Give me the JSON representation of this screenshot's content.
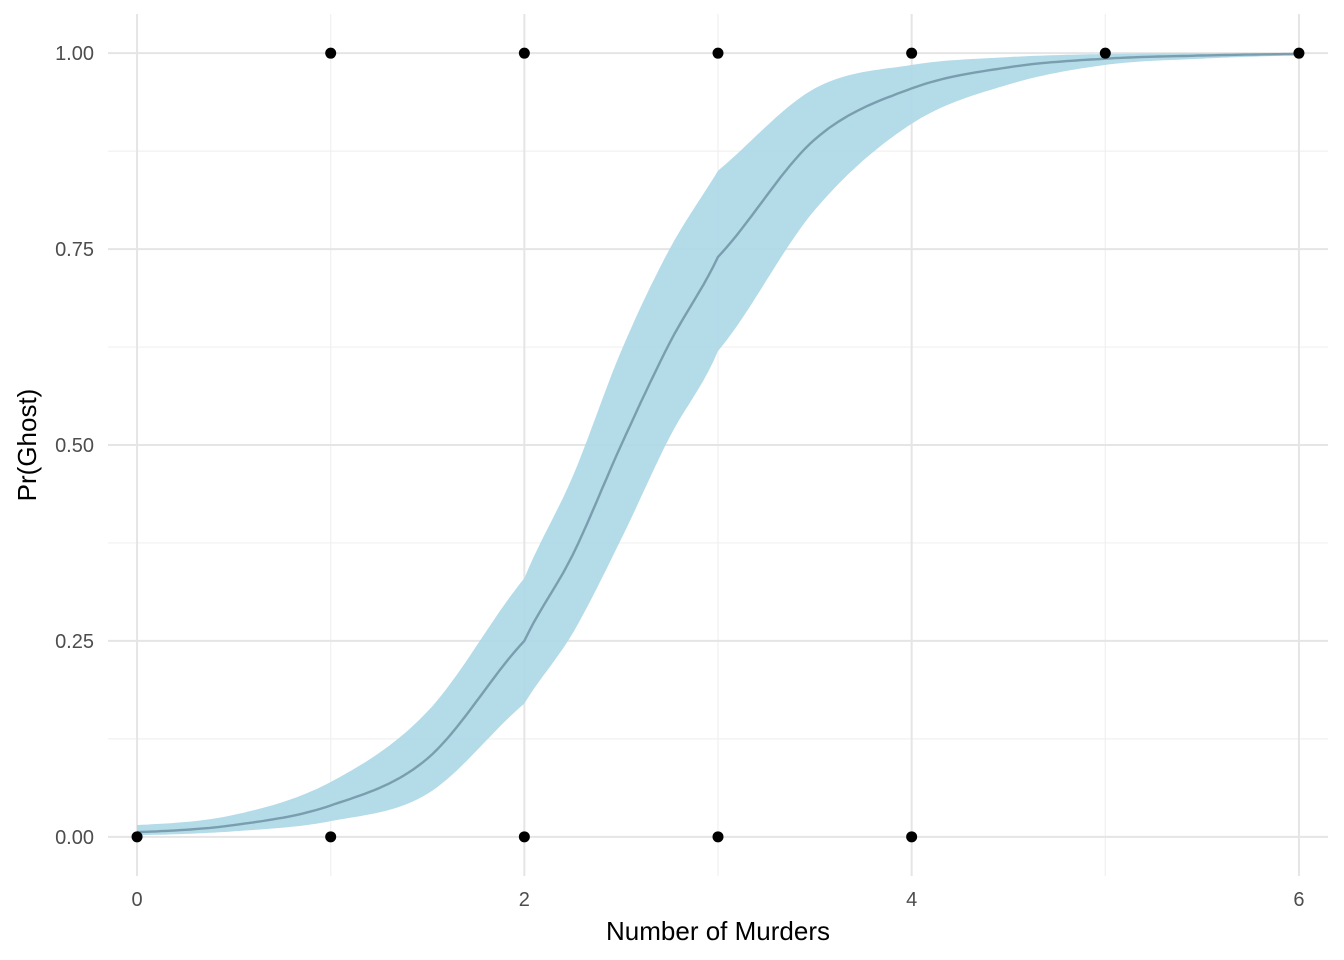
{
  "chart_data": {
    "type": "scatter",
    "title": "",
    "xlabel": "Number of Murders",
    "ylabel": "Pr(Ghost)",
    "xlim": [
      -0.15,
      6.15
    ],
    "ylim": [
      -0.05,
      1.05
    ],
    "x_ticks": [
      0,
      2,
      4,
      6
    ],
    "x_tick_labels": [
      "0",
      "2",
      "4",
      "6"
    ],
    "y_ticks": [
      0,
      0.25,
      0.5,
      0.75,
      1
    ],
    "y_tick_labels": [
      "0.00",
      "0.25",
      "0.50",
      "0.75",
      "1.00"
    ],
    "grid": true,
    "legend": "none",
    "colors": {
      "points": "#000000",
      "curve": "#7a9eae",
      "band": "#add8e6",
      "grid_major": "#e5e5e5",
      "grid_minor": "#f0f0f0"
    },
    "points": [
      {
        "x": 0,
        "y": 0
      },
      {
        "x": 1,
        "y": 0
      },
      {
        "x": 1,
        "y": 1
      },
      {
        "x": 2,
        "y": 0
      },
      {
        "x": 2,
        "y": 1
      },
      {
        "x": 3,
        "y": 0
      },
      {
        "x": 3,
        "y": 1
      },
      {
        "x": 4,
        "y": 0
      },
      {
        "x": 4,
        "y": 1
      },
      {
        "x": 5,
        "y": 1
      },
      {
        "x": 6,
        "y": 1
      }
    ],
    "fit_curve": {
      "x": [
        0,
        0.5,
        1,
        1.5,
        2,
        2.25,
        2.5,
        2.75,
        3,
        3.5,
        4,
        4.5,
        5,
        5.5,
        6
      ],
      "y": [
        0.006,
        0.015,
        0.04,
        0.1,
        0.25,
        0.36,
        0.5,
        0.63,
        0.74,
        0.89,
        0.955,
        0.982,
        0.993,
        0.997,
        0.999
      ],
      "lower": [
        0.002,
        0.007,
        0.02,
        0.055,
        0.17,
        0.26,
        0.38,
        0.51,
        0.62,
        0.8,
        0.91,
        0.96,
        0.985,
        0.993,
        0.997
      ],
      "upper": [
        0.015,
        0.028,
        0.07,
        0.16,
        0.33,
        0.46,
        0.62,
        0.75,
        0.85,
        0.955,
        0.985,
        0.995,
        0.999,
        1.0,
        1.0
      ]
    }
  }
}
